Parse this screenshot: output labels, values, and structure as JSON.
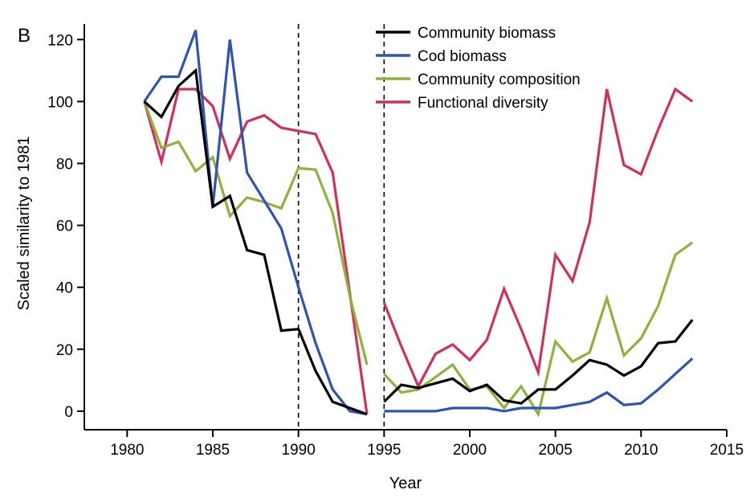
{
  "panel_label": "B",
  "chart_data": {
    "type": "line",
    "xlabel": "Year",
    "ylabel": "Scaled similarity to 1981",
    "xlim": [
      1977.5,
      2015
    ],
    "ylim": [
      -6,
      125
    ],
    "xticks": [
      1980,
      1985,
      1990,
      1995,
      2000,
      2005,
      2010,
      2015
    ],
    "yticks": [
      0,
      20,
      40,
      60,
      80,
      100,
      120
    ],
    "vertical_lines": [
      1990,
      1995
    ],
    "legend_position": "top-right",
    "series": [
      {
        "name": "Community biomass",
        "color": "#000000",
        "points": [
          [
            1981,
            100
          ],
          [
            1982,
            95
          ],
          [
            1983,
            105
          ],
          [
            1984,
            110
          ],
          [
            1985,
            66
          ],
          [
            1986,
            69.5
          ],
          [
            1987,
            52
          ],
          [
            1988,
            50.5
          ],
          [
            1989,
            26
          ],
          [
            1990,
            26.5
          ],
          [
            1991,
            13
          ],
          [
            1992,
            3
          ],
          [
            1993,
            1
          ],
          [
            1994,
            -1
          ],
          [
            1995,
            3
          ],
          [
            1996,
            8.5
          ],
          [
            1997,
            7.5
          ],
          [
            1998,
            9
          ],
          [
            1999,
            10.5
          ],
          [
            2000,
            6.5
          ],
          [
            2001,
            8.5
          ],
          [
            2002,
            3.5
          ],
          [
            2003,
            2.5
          ],
          [
            2004,
            7
          ],
          [
            2005,
            7
          ],
          [
            2006,
            11.5
          ],
          [
            2007,
            16.5
          ],
          [
            2008,
            15
          ],
          [
            2009,
            11.5
          ],
          [
            2010,
            14.5
          ],
          [
            2011,
            22
          ],
          [
            2012,
            22.5
          ],
          [
            2013,
            29.5
          ]
        ]
      },
      {
        "name": "Cod biomass",
        "color": "#2e54b4",
        "points": [
          [
            1981,
            100
          ],
          [
            1982,
            108
          ],
          [
            1983,
            108
          ],
          [
            1984,
            123
          ],
          [
            1985,
            66
          ],
          [
            1986,
            120
          ],
          [
            1987,
            77
          ],
          [
            1988,
            68
          ],
          [
            1989,
            59
          ],
          [
            1990,
            40
          ],
          [
            1991,
            22
          ],
          [
            1992,
            7
          ],
          [
            1993,
            0
          ],
          [
            1994,
            -1
          ],
          [
            1995,
            0
          ],
          [
            1996,
            0
          ],
          [
            1997,
            0
          ],
          [
            1998,
            0
          ],
          [
            1999,
            1
          ],
          [
            2000,
            1
          ],
          [
            2001,
            1
          ],
          [
            2002,
            0
          ],
          [
            2003,
            1
          ],
          [
            2004,
            1
          ],
          [
            2005,
            1
          ],
          [
            2006,
            2
          ],
          [
            2007,
            3
          ],
          [
            2008,
            6
          ],
          [
            2009,
            2
          ],
          [
            2010,
            2.5
          ],
          [
            2011,
            7
          ],
          [
            2012,
            12
          ],
          [
            2013,
            17
          ]
        ]
      },
      {
        "name": "Community composition",
        "color": "#8db33a",
        "points": [
          [
            1981,
            100
          ],
          [
            1982,
            85
          ],
          [
            1983,
            87
          ],
          [
            1984,
            77.5
          ],
          [
            1985,
            82
          ],
          [
            1986,
            63
          ],
          [
            1987,
            69
          ],
          [
            1988,
            67.5
          ],
          [
            1989,
            65.5
          ],
          [
            1990,
            78.5
          ],
          [
            1991,
            78
          ],
          [
            1992,
            64
          ],
          [
            1993,
            37
          ],
          [
            1994,
            15
          ],
          [
            1995,
            12
          ],
          [
            1996,
            6
          ],
          [
            1997,
            7
          ],
          [
            1998,
            11
          ],
          [
            1999,
            15
          ],
          [
            2000,
            7
          ],
          [
            2001,
            8
          ],
          [
            2002,
            1
          ],
          [
            2003,
            8
          ],
          [
            2004,
            -1
          ],
          [
            2005,
            22.5
          ],
          [
            2006,
            16
          ],
          [
            2007,
            19
          ],
          [
            2008,
            36.5
          ],
          [
            2009,
            18
          ],
          [
            2010,
            23.5
          ],
          [
            2011,
            34
          ],
          [
            2012,
            50.5
          ],
          [
            2013,
            54.5
          ]
        ]
      },
      {
        "name": "Functional diversity",
        "color": "#d42e5b",
        "points": [
          [
            1981,
            100
          ],
          [
            1982,
            80.5
          ],
          [
            1983,
            104
          ],
          [
            1984,
            104
          ],
          [
            1985,
            98.5
          ],
          [
            1986,
            81.5
          ],
          [
            1987,
            93.5
          ],
          [
            1988,
            95.5
          ],
          [
            1989,
            91.5
          ],
          [
            1990,
            90.5
          ],
          [
            1991,
            89.5
          ],
          [
            1992,
            77
          ],
          [
            1993,
            38
          ],
          [
            1994,
            -1
          ],
          [
            1995,
            35
          ],
          [
            1996,
            21
          ],
          [
            1997,
            8
          ],
          [
            1998,
            18.5
          ],
          [
            1999,
            21.5
          ],
          [
            2000,
            16.5
          ],
          [
            2001,
            23
          ],
          [
            2002,
            39.5
          ],
          [
            2003,
            26.5
          ],
          [
            2004,
            12.5
          ],
          [
            2005,
            50.5
          ],
          [
            2006,
            42
          ],
          [
            2007,
            61
          ],
          [
            2008,
            104
          ],
          [
            2009,
            79.5
          ],
          [
            2010,
            76.5
          ],
          [
            2011,
            91
          ],
          [
            2012,
            104
          ],
          [
            2013,
            100
          ]
        ]
      }
    ]
  }
}
